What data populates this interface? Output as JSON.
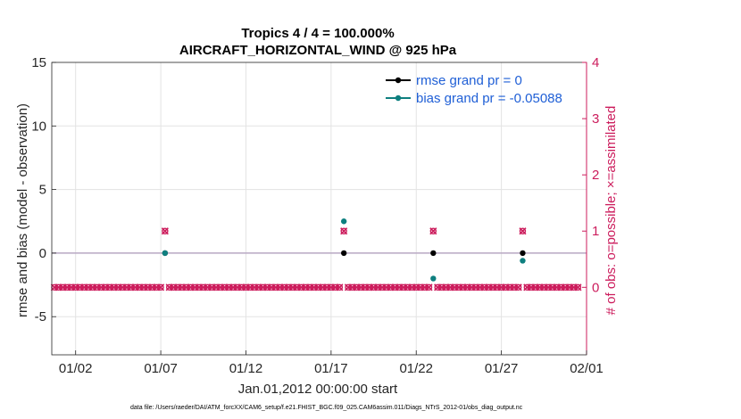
{
  "chart_data": {
    "type": "line",
    "title_line1": "Tropics 4 / 4 = 100.000%",
    "title_line2": "AIRCRAFT_HORIZONTAL_WIND @ 925 hPa",
    "xlabel": "Jan.01,2012 00:00:00 start",
    "ylabel_left": "rmse and bias (model - observation)",
    "ylabel_right": "# of obs: o=possible; ×=assimilated",
    "footnote": "data file: /Users/raeder/DAI/ATM_forcXX/CAM6_setup/f.e21.FHIST_BGC.f09_025.CAM6assim.011/Diags_NTrS_2012-01/obs_diag_output.nc",
    "xlim": [
      0.6,
      32.0
    ],
    "ylim_left": [
      -8,
      15
    ],
    "ylim_right": [
      -1.2,
      4
    ],
    "x_ticks": [
      2,
      7,
      12,
      17,
      22,
      27,
      32
    ],
    "x_tick_labels": [
      "01/02",
      "01/07",
      "01/12",
      "01/17",
      "01/22",
      "01/27",
      "02/01"
    ],
    "y_left_ticks": [
      -5,
      0,
      5,
      10,
      15
    ],
    "y_left_tick_labels": [
      "-5",
      "0",
      "5",
      "10",
      "15"
    ],
    "y_right_ticks": [
      0,
      1,
      2,
      3,
      4
    ],
    "y_right_tick_labels": [
      "0",
      "1",
      "2",
      "3",
      "4"
    ],
    "grid": true,
    "legend_location": "top-right",
    "series": [
      {
        "name": "rmse grand pr = 0",
        "color": "#000000",
        "axis": "left",
        "style": "line-marker",
        "x": [
          7.25,
          17.75,
          23.0,
          28.25
        ],
        "values": [
          0,
          0,
          0,
          0
        ]
      },
      {
        "name": "bias grand pr = -0.05088",
        "color": "#0e7f7f",
        "axis": "left",
        "style": "marker",
        "x": [
          7.25,
          17.75,
          23.0,
          28.25
        ],
        "values": [
          0,
          2.5,
          -2.0,
          -0.6
        ]
      }
    ],
    "obs_counts": {
      "color": "#cc1c5c",
      "x_start": 0.75,
      "x_step": 0.25,
      "n": 124,
      "nonzero_x": [
        7.25,
        17.75,
        23.0,
        28.25
      ],
      "nonzero_value": 1
    },
    "zero_line_color": "#b9a9c4"
  }
}
